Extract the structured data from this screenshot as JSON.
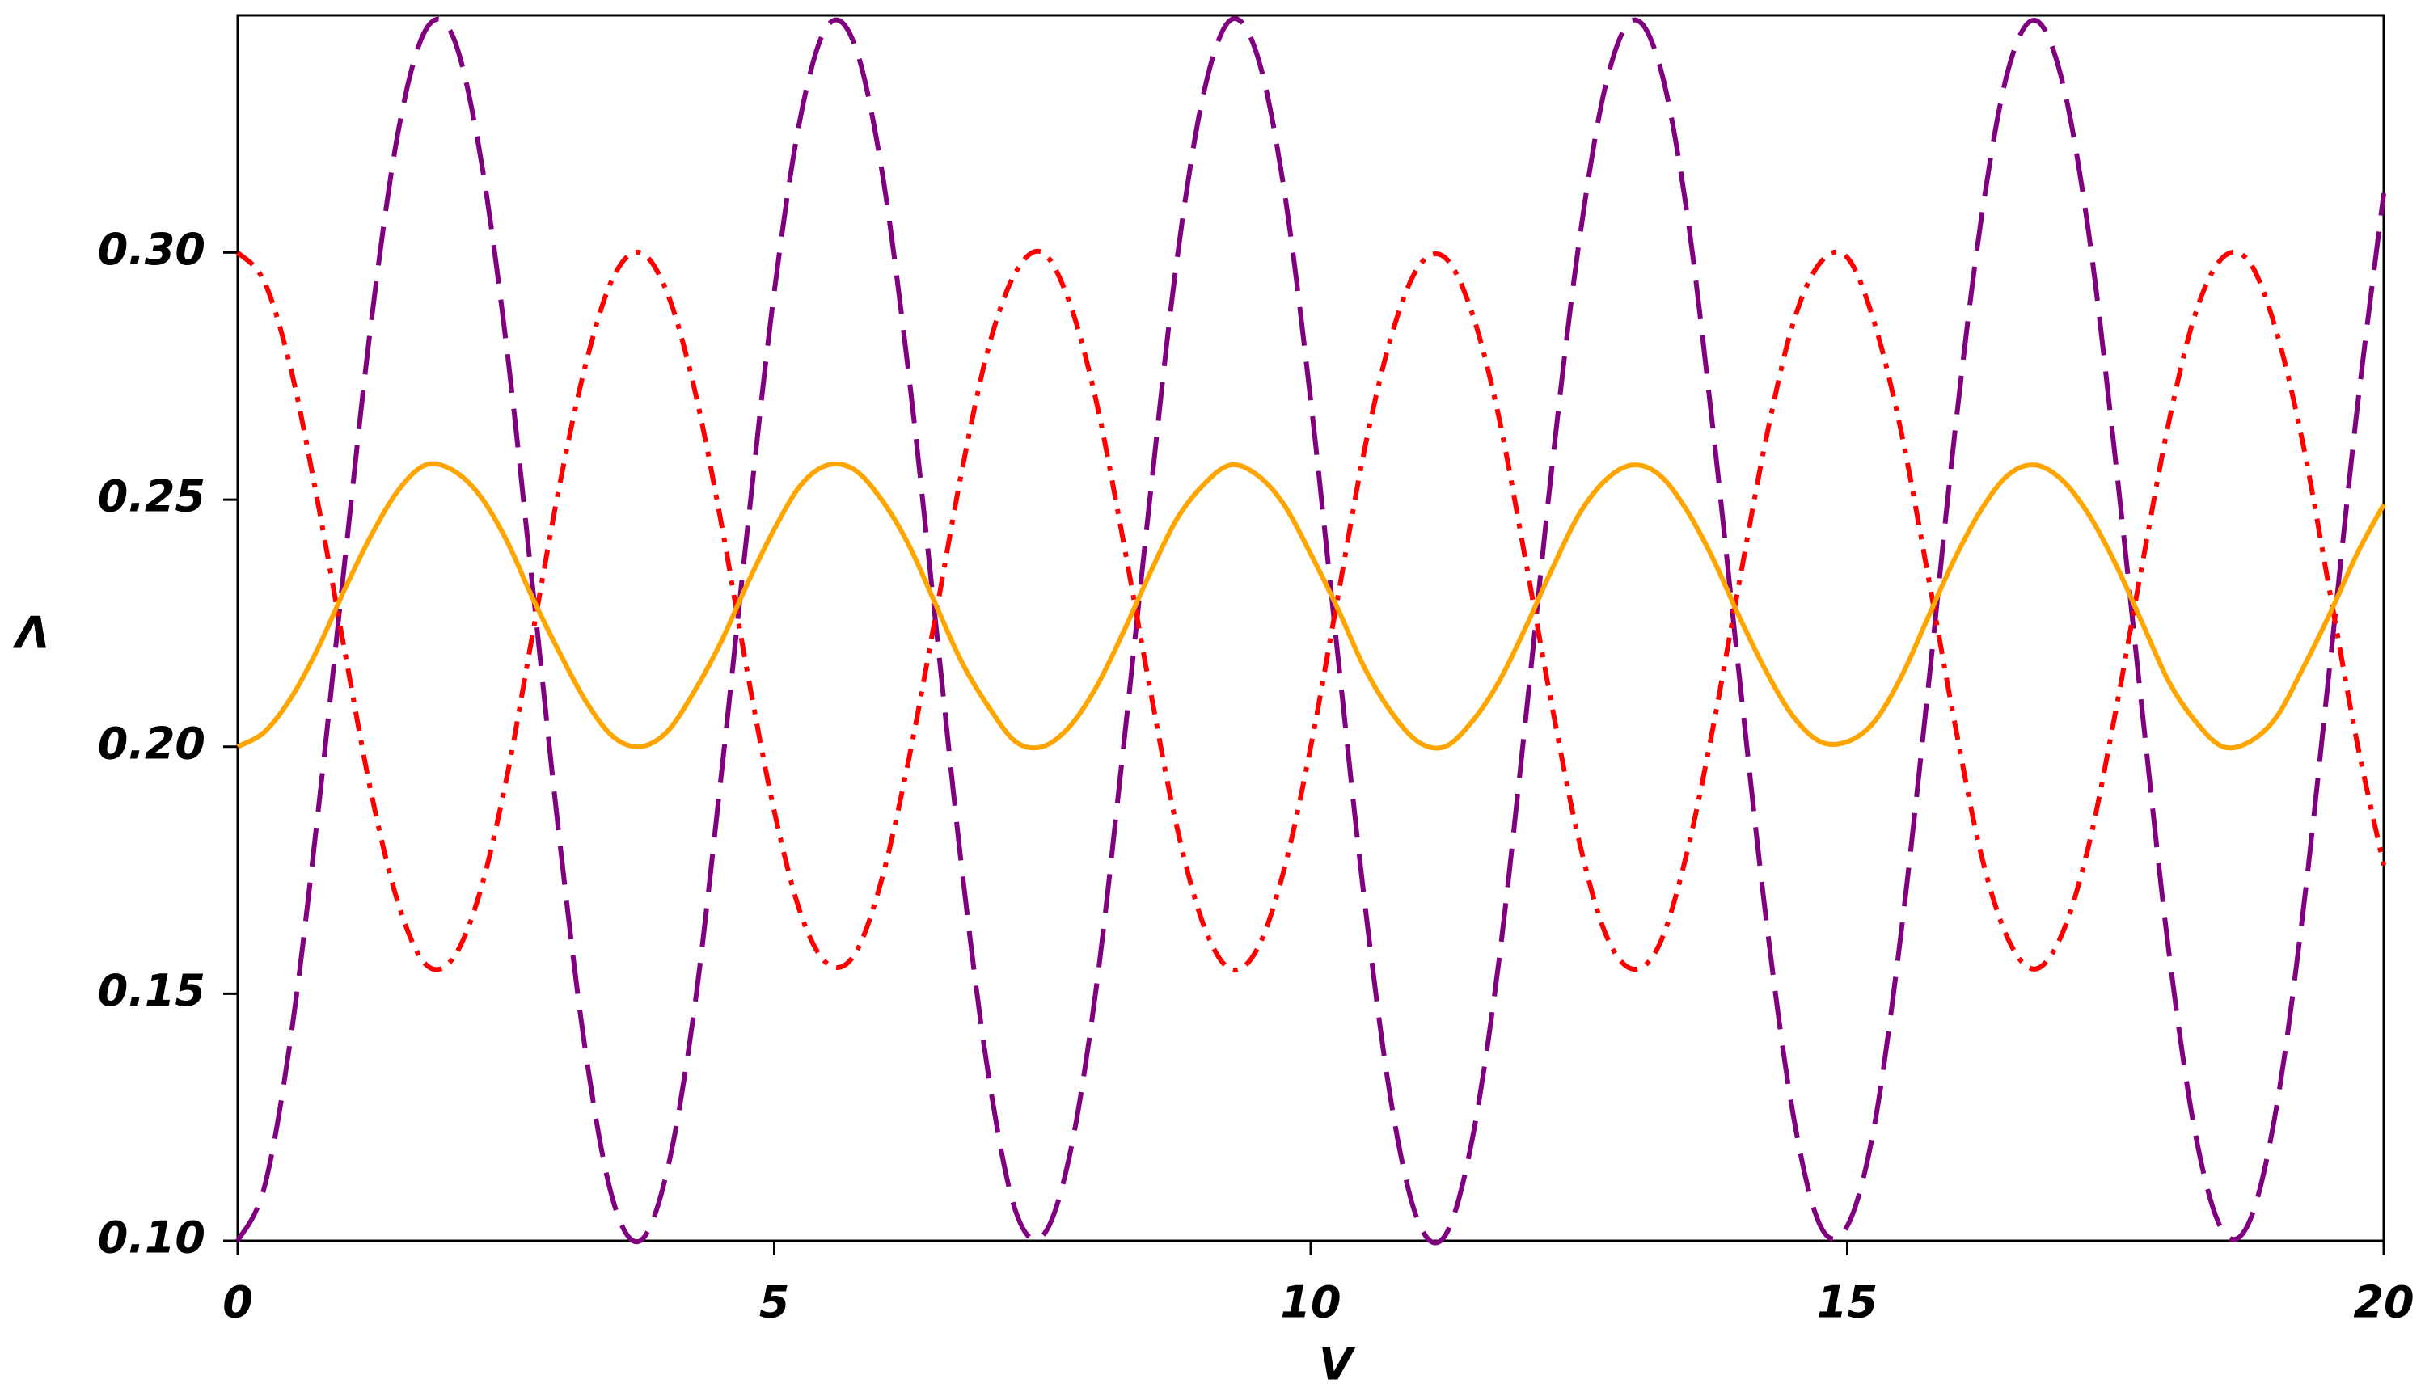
{
  "chart_data": {
    "type": "line",
    "x_label": "V",
    "y_label": "Λ",
    "x": [
      0,
      0.25,
      0.5,
      0.75,
      1,
      1.25,
      1.5,
      1.75,
      2,
      2.25,
      2.5,
      2.75,
      3,
      3.25,
      3.5,
      3.75,
      4,
      4.25,
      4.5,
      4.75,
      5,
      5.25,
      5.5,
      5.75,
      6,
      6.25,
      6.5,
      6.75,
      7,
      7.25,
      7.5,
      7.75,
      8,
      8.25,
      8.5,
      8.75,
      9,
      9.25,
      9.5,
      9.75,
      10,
      10.25,
      10.5,
      10.75,
      11,
      11.25,
      11.5,
      11.75,
      12,
      12.25,
      12.5,
      12.75,
      13,
      13.25,
      13.5,
      13.75,
      14,
      14.25,
      14.5,
      14.75,
      15,
      15.25,
      15.5,
      15.75,
      16,
      16.25,
      16.5,
      16.75,
      17,
      17.25,
      17.5,
      17.75,
      18,
      18.25,
      18.5,
      18.75,
      19,
      19.25,
      19.5,
      19.75,
      20
    ],
    "series": [
      {
        "color": "#800080",
        "linestyle": "dashed",
        "values": [
          0.1,
          0.111,
          0.142,
          0.187,
          0.238,
          0.287,
          0.325,
          0.345,
          0.344,
          0.321,
          0.282,
          0.232,
          0.181,
          0.137,
          0.108,
          0.1,
          0.114,
          0.146,
          0.193,
          0.244,
          0.292,
          0.328,
          0.346,
          0.342,
          0.317,
          0.276,
          0.226,
          0.175,
          0.133,
          0.106,
          0.101,
          0.117,
          0.151,
          0.199,
          0.25,
          0.298,
          0.332,
          0.347,
          0.34,
          0.313,
          0.27,
          0.219,
          0.169,
          0.128,
          0.104,
          0.101,
          0.12,
          0.156,
          0.205,
          0.257,
          0.302,
          0.334,
          0.347,
          0.338,
          0.309,
          0.264,
          0.213,
          0.164,
          0.125,
          0.103,
          0.103,
          0.123,
          0.162,
          0.211,
          0.263,
          0.307,
          0.337,
          0.347,
          0.335,
          0.304,
          0.258,
          0.207,
          0.158,
          0.121,
          0.102,
          0.104,
          0.127,
          0.167,
          0.217,
          0.268,
          0.312
        ]
      },
      {
        "color": "#ff0000",
        "linestyle": "dashdot",
        "values": [
          0.3,
          0.294,
          0.276,
          0.249,
          0.219,
          0.19,
          0.168,
          0.156,
          0.157,
          0.17,
          0.193,
          0.223,
          0.253,
          0.278,
          0.295,
          0.3,
          0.292,
          0.273,
          0.246,
          0.215,
          0.187,
          0.166,
          0.156,
          0.158,
          0.173,
          0.197,
          0.226,
          0.256,
          0.281,
          0.296,
          0.3,
          0.29,
          0.27,
          0.242,
          0.212,
          0.184,
          0.164,
          0.155,
          0.159,
          0.175,
          0.2,
          0.23,
          0.26,
          0.283,
          0.297,
          0.299,
          0.288,
          0.267,
          0.238,
          0.208,
          0.181,
          0.162,
          0.155,
          0.16,
          0.178,
          0.204,
          0.234,
          0.263,
          0.286,
          0.298,
          0.299,
          0.286,
          0.264,
          0.235,
          0.205,
          0.178,
          0.161,
          0.155,
          0.162,
          0.18,
          0.207,
          0.237,
          0.266,
          0.288,
          0.299,
          0.298,
          0.284,
          0.261,
          0.231,
          0.201,
          0.176
        ]
      },
      {
        "color": "#ffa500",
        "linestyle": "solid",
        "values": [
          0.2,
          0.203,
          0.21,
          0.22,
          0.232,
          0.243,
          0.252,
          0.257,
          0.256,
          0.251,
          0.242,
          0.23,
          0.219,
          0.209,
          0.202,
          0.2,
          0.203,
          0.211,
          0.221,
          0.233,
          0.244,
          0.253,
          0.257,
          0.256,
          0.25,
          0.241,
          0.229,
          0.217,
          0.208,
          0.201,
          0.2,
          0.204,
          0.212,
          0.223,
          0.235,
          0.246,
          0.253,
          0.257,
          0.255,
          0.249,
          0.239,
          0.228,
          0.216,
          0.207,
          0.201,
          0.2,
          0.205,
          0.213,
          0.224,
          0.236,
          0.247,
          0.254,
          0.257,
          0.255,
          0.248,
          0.238,
          0.226,
          0.215,
          0.206,
          0.201,
          0.201,
          0.205,
          0.214,
          0.226,
          0.238,
          0.248,
          0.255,
          0.257,
          0.254,
          0.247,
          0.237,
          0.225,
          0.213,
          0.205,
          0.2,
          0.201,
          0.206,
          0.216,
          0.227,
          0.239,
          0.249
        ]
      }
    ],
    "xlim": [
      0,
      20
    ],
    "ylim": [
      0.1,
      0.348
    ],
    "xticks": [
      0,
      5,
      10,
      15,
      20
    ],
    "yticks": [
      {
        "value": 0.1,
        "label": "0.10"
      },
      0.15,
      {
        "value": 0.2,
        "label": "0.20"
      },
      0.25,
      {
        "value": 0.3,
        "label": "0.30"
      }
    ]
  }
}
